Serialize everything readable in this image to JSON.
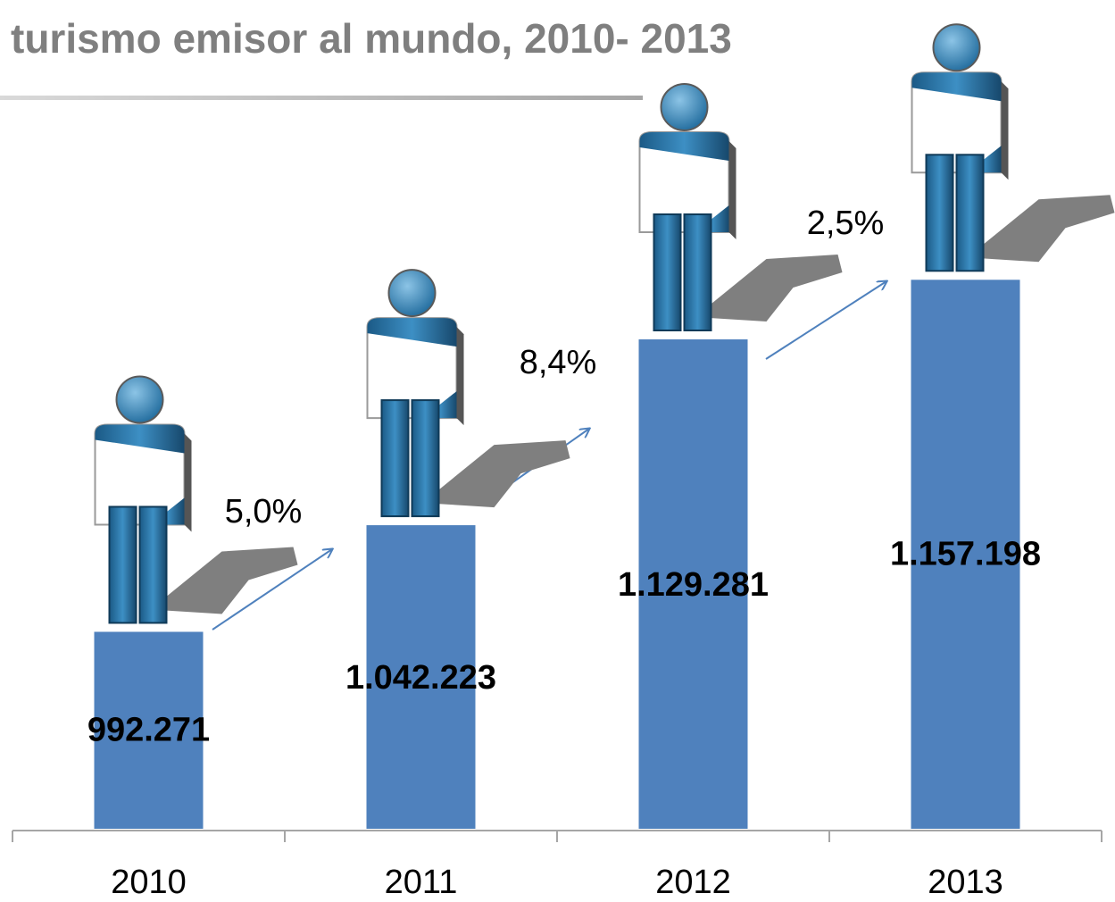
{
  "chart_data": {
    "type": "bar",
    "title": "turismo emisor al mundo, 2010- 2013",
    "categories": [
      "2010",
      "2011",
      "2012",
      "2013"
    ],
    "values": [
      992271,
      1042223,
      1129281,
      1157198
    ],
    "value_labels": [
      "992.271",
      "1.042.223",
      "1.129.281",
      "1.157.198"
    ],
    "color": "#4f81bd",
    "ylim": [
      900000,
      1200000
    ],
    "annotations": [
      "5,0%",
      "8,4%",
      "2,5%"
    ]
  }
}
